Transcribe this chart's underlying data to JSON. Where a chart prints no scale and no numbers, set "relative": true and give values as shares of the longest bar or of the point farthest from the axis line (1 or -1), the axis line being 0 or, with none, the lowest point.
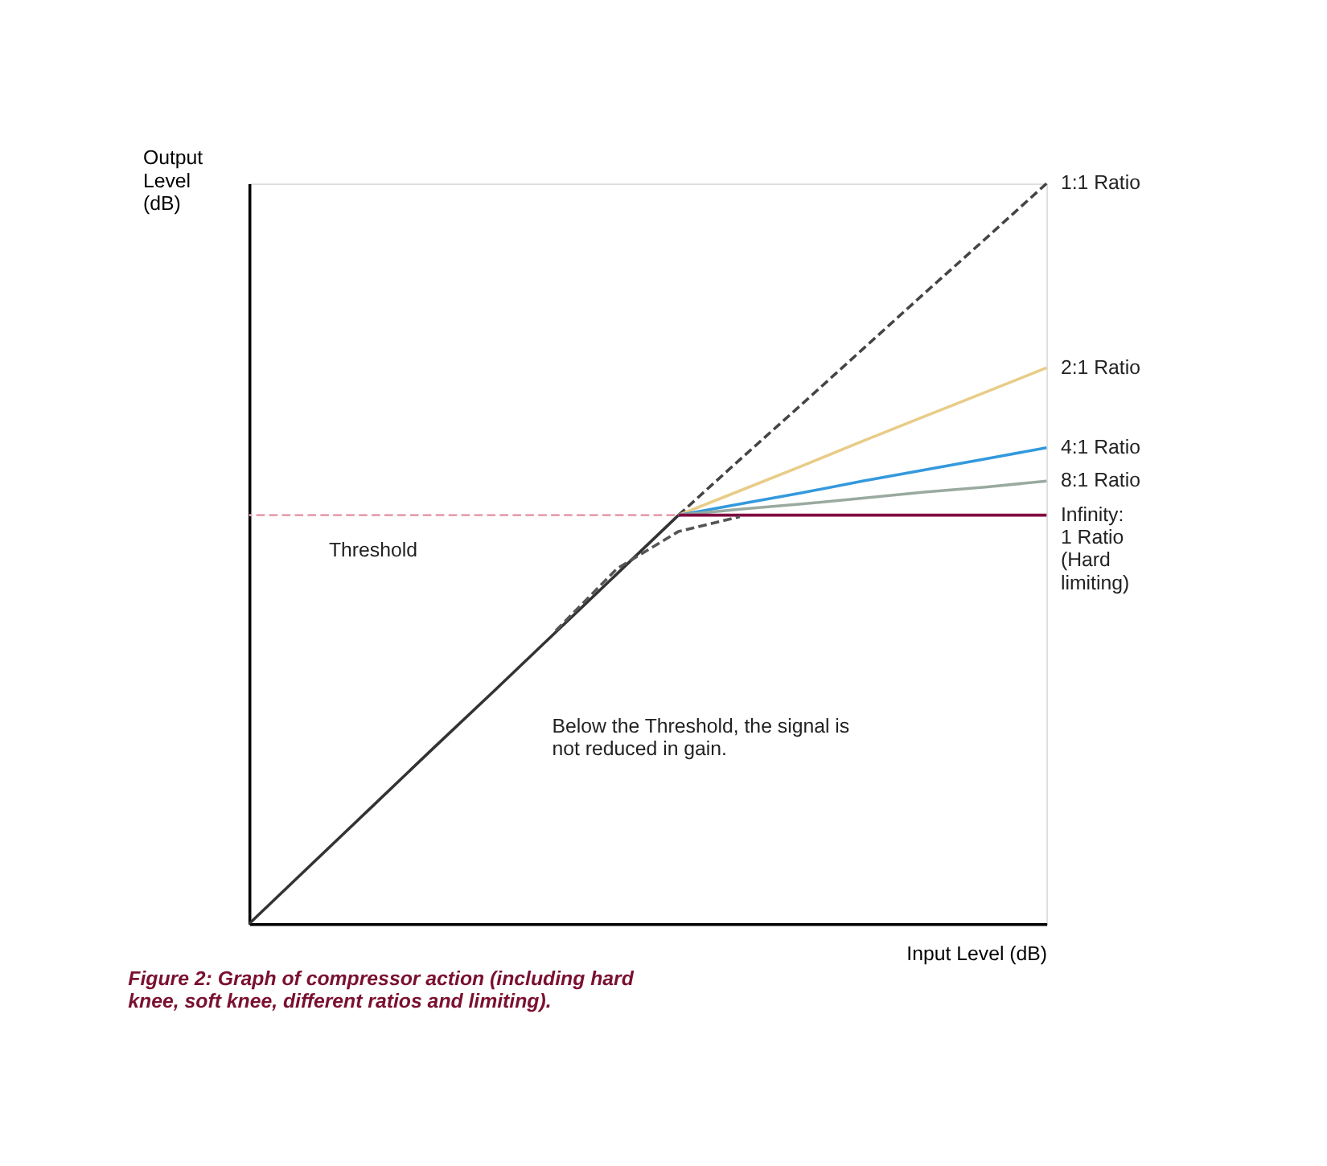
{
  "chart_data": {
    "type": "line",
    "relative": true,
    "xlabel": "Input Level (dB)",
    "ylabel": "Output Level (dB)",
    "categories": [
      null,
      null,
      null,
      null,
      null,
      null,
      null,
      null,
      null,
      null,
      null,
      null,
      null,
      null
    ],
    "tick_labels": false,
    "grid": false,
    "marker": "none",
    "series": [
      {
        "color": "#333333",
        "line_style": "solid",
        "values": [
          0,
          0.079,
          0.158,
          0.237,
          0.315,
          0.394,
          0.473,
          0.552,
          null,
          null,
          null,
          null,
          null,
          null
        ]
      },
      {
        "name": "1:1 Ratio",
        "color": "#444444",
        "line_style": "dashed",
        "values": [
          null,
          null,
          null,
          null,
          null,
          null,
          null,
          0.552,
          0.627,
          0.701,
          0.776,
          0.851,
          0.925,
          1.0
        ]
      },
      {
        "name": "2:1 Ratio",
        "color": "#e8cc88",
        "line_style": "solid",
        "values": [
          null,
          null,
          null,
          null,
          null,
          null,
          null,
          0.552,
          0.585,
          0.618,
          0.652,
          0.685,
          0.718,
          0.751
        ]
      },
      {
        "name": "4:1 Ratio",
        "color": "#3399dd",
        "line_style": "solid",
        "values": [
          null,
          null,
          null,
          null,
          null,
          null,
          null,
          0.552,
          0.567,
          0.582,
          0.598,
          0.613,
          0.628,
          0.643
        ]
      },
      {
        "name": "8:1 Ratio",
        "color": "#99aaa0",
        "line_style": "solid",
        "values": [
          null,
          null,
          null,
          null,
          null,
          null,
          null,
          0.552,
          0.56,
          0.567,
          0.575,
          0.583,
          0.59,
          0.598
        ]
      },
      {
        "name": "Infinity: 1 Ratio (Hard limiting)",
        "color": "#800040",
        "line_style": "solid",
        "values": [
          null,
          null,
          null,
          null,
          null,
          null,
          null,
          0.552,
          0.552,
          0.552,
          0.552,
          0.552,
          0.552,
          0.552
        ]
      },
      {
        "color": "#555555",
        "line_style": "dashed",
        "values": [
          null,
          null,
          null,
          null,
          null,
          0.396,
          0.48,
          0.53,
          0.55,
          null,
          null,
          null,
          null,
          null
        ]
      }
    ],
    "ref_lines": [
      {
        "axis": "y",
        "value": 0.552,
        "label": "Threshold",
        "color": "#e8a0b0",
        "line_style": "dashed"
      }
    ],
    "annotations": [
      "Below the Threshold, the signal is not reduced in gain.",
      "Figure 2: Graph of compressor action (including hard knee, soft knee, different ratios and limiting)."
    ]
  }
}
